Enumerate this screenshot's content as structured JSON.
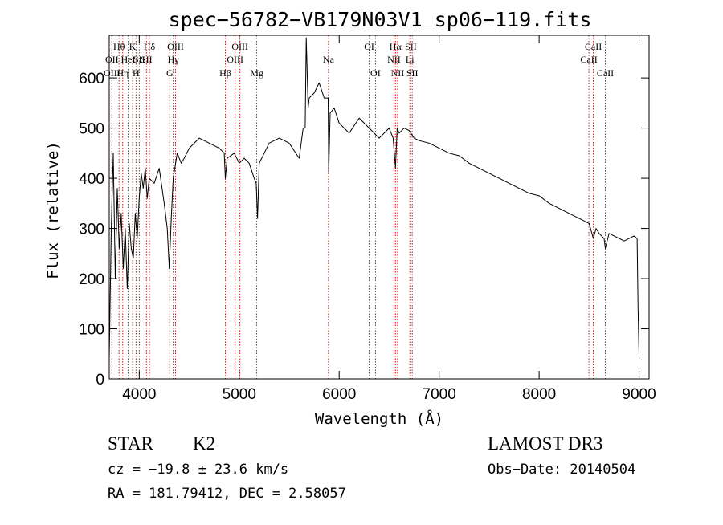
{
  "chart_data": {
    "type": "line",
    "title": "spec−56782−VB179N03V1_sp06−119.fits",
    "xlabel": "Wavelength (Å)",
    "ylabel": "Flux (relative)",
    "xlim": [
      3700,
      9100
    ],
    "ylim": [
      0,
      685
    ],
    "xticks": [
      4000,
      5000,
      6000,
      7000,
      8000,
      9000
    ],
    "xtick_labels": [
      "4000",
      "5000",
      "6000",
      "7000",
      "8000",
      "9000"
    ],
    "yticks": [
      0,
      100,
      200,
      300,
      400,
      500,
      600
    ],
    "ytick_labels": [
      "0",
      "100",
      "200",
      "300",
      "400",
      "500",
      "600"
    ],
    "series": [
      {
        "name": "spectrum",
        "x": [
          3700,
          3720,
          3740,
          3760,
          3780,
          3800,
          3820,
          3840,
          3860,
          3880,
          3900,
          3920,
          3940,
          3960,
          3980,
          4000,
          4020,
          4040,
          4060,
          4080,
          4100,
          4150,
          4200,
          4250,
          4280,
          4300,
          4320,
          4340,
          4380,
          4420,
          4450,
          4500,
          4600,
          4700,
          4800,
          4850,
          4861,
          4880,
          4950,
          5000,
          5050,
          5100,
          5150,
          5170,
          5183,
          5200,
          5250,
          5300,
          5400,
          5500,
          5600,
          5640,
          5660,
          5670,
          5690,
          5700,
          5750,
          5800,
          5850,
          5890,
          5895,
          5910,
          5950,
          6000,
          6050,
          6100,
          6200,
          6300,
          6400,
          6500,
          6540,
          6563,
          6580,
          6600,
          6650,
          6700,
          6750,
          6800,
          6900,
          7000,
          7100,
          7200,
          7300,
          7400,
          7500,
          7600,
          7700,
          7800,
          7900,
          8000,
          8100,
          8200,
          8300,
          8400,
          8500,
          8542,
          8570,
          8600,
          8650,
          8662,
          8700,
          8750,
          8800,
          8850,
          8900,
          8950,
          8980,
          8990,
          9000
        ],
        "y": [
          40,
          300,
          450,
          200,
          380,
          260,
          330,
          220,
          300,
          180,
          310,
          260,
          240,
          330,
          280,
          360,
          410,
          380,
          420,
          360,
          400,
          390,
          420,
          350,
          300,
          220,
          320,
          400,
          450,
          430,
          440,
          460,
          480,
          470,
          460,
          450,
          400,
          440,
          450,
          430,
          440,
          430,
          400,
          390,
          320,
          430,
          450,
          470,
          480,
          470,
          440,
          500,
          500,
          680,
          540,
          560,
          570,
          590,
          560,
          560,
          410,
          530,
          540,
          510,
          500,
          490,
          520,
          500,
          480,
          500,
          480,
          420,
          500,
          490,
          500,
          495,
          480,
          475,
          470,
          460,
          450,
          445,
          430,
          420,
          410,
          400,
          390,
          380,
          370,
          365,
          350,
          340,
          330,
          320,
          310,
          280,
          300,
          290,
          280,
          260,
          290,
          285,
          280,
          275,
          280,
          285,
          280,
          140,
          40
        ]
      }
    ],
    "spectral_lines": [
      {
        "label": "Hθ",
        "x": 3798,
        "row": 1
      },
      {
        "label": "OII",
        "x": 3727,
        "row": 2
      },
      {
        "label": "OIII",
        "x": 3727,
        "row": 3
      },
      {
        "label": "Hη",
        "x": 3835,
        "row": 3
      },
      {
        "label": "HeI",
        "x": 3889,
        "row": 2
      },
      {
        "label": "K",
        "x": 3934,
        "row": 1
      },
      {
        "label": "H",
        "x": 3968,
        "row": 3
      },
      {
        "label": "SII",
        "x": 4000,
        "row": 2
      },
      {
        "label": "Hδ",
        "x": 4102,
        "row": 1
      },
      {
        "label": "SII",
        "x": 4072,
        "row": 2
      },
      {
        "label": "OIII",
        "x": 4363,
        "row": 1
      },
      {
        "label": "Hγ",
        "x": 4340,
        "row": 2
      },
      {
        "label": "G",
        "x": 4305,
        "row": 3
      },
      {
        "label": "Hβ",
        "x": 4861,
        "row": 3
      },
      {
        "label": "OIII",
        "x": 5007,
        "row": 1
      },
      {
        "label": "OIII",
        "x": 4959,
        "row": 2
      },
      {
        "label": "Mg",
        "x": 5175,
        "row": 3
      },
      {
        "label": "Na",
        "x": 5893,
        "row": 2
      },
      {
        "label": "OI",
        "x": 6300,
        "row": 1
      },
      {
        "label": "OI",
        "x": 6363,
        "row": 3
      },
      {
        "label": "Hα",
        "x": 6563,
        "row": 1
      },
      {
        "label": "NII",
        "x": 6548,
        "row": 2
      },
      {
        "label": "NII",
        "x": 6584,
        "row": 3
      },
      {
        "label": "SII",
        "x": 6717,
        "row": 1
      },
      {
        "label": "Li",
        "x": 6707,
        "row": 2
      },
      {
        "label": "SII",
        "x": 6731,
        "row": 3
      },
      {
        "label": "CaII",
        "x": 8542,
        "row": 1
      },
      {
        "label": "CaII",
        "x": 8498,
        "row": 2
      },
      {
        "label": "CaII",
        "x": 8662,
        "row": 3
      }
    ]
  },
  "info": {
    "object_class": "STAR",
    "subclass": "K2",
    "survey": "LAMOST DR3",
    "cz": "cz = −19.8 ± 23.6 km/s",
    "obs_date": "Obs−Date: 20140504",
    "coords": "RA = 181.79412, DEC =    2.58057"
  },
  "colors": {
    "spectrum": "#000000",
    "line_markers": "#b22222",
    "axes": "#000000"
  }
}
